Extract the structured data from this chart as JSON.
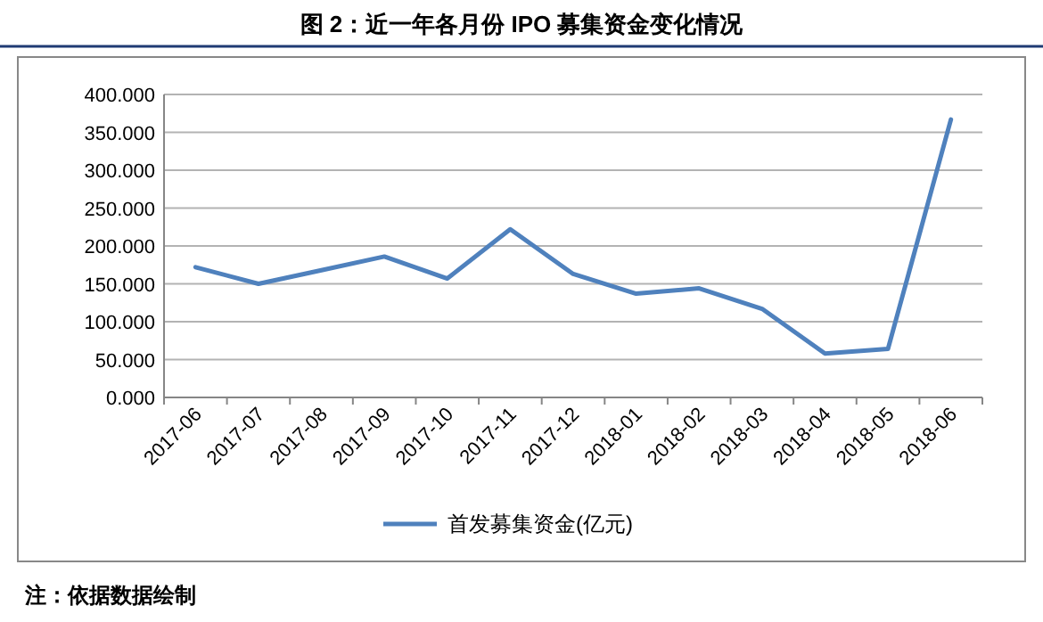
{
  "chart_data": {
    "type": "line",
    "title": "图 2：近一年各月份 IPO 募集资金变化情况",
    "categories": [
      "2017-06",
      "2017-07",
      "2017-08",
      "2017-09",
      "2017-10",
      "2017-11",
      "2017-12",
      "2018-01",
      "2018-02",
      "2018-03",
      "2018-04",
      "2018-05",
      "2018-06"
    ],
    "series": [
      {
        "name": "首发募集资金(亿元)",
        "color": "#4f81bd",
        "values": [
          172,
          150,
          168,
          186,
          157,
          222,
          163,
          137,
          144,
          117,
          58,
          64,
          367
        ]
      }
    ],
    "ylim": [
      0,
      400
    ],
    "yticks": [
      {
        "value": 0,
        "label": "0.000"
      },
      {
        "value": 50,
        "label": "50.000"
      },
      {
        "value": 100,
        "label": "100.000"
      },
      {
        "value": 150,
        "label": "150.000"
      },
      {
        "value": 200,
        "label": "200.000"
      },
      {
        "value": 250,
        "label": "250.000"
      },
      {
        "value": 300,
        "label": "300.000"
      },
      {
        "value": 350,
        "label": "350.000"
      },
      {
        "value": 400,
        "label": "400.000"
      }
    ],
    "legend": "bottom",
    "grid": "y",
    "marker": "none",
    "line_style": "solid",
    "annotations": [
      "注：依据数据绘制"
    ]
  }
}
